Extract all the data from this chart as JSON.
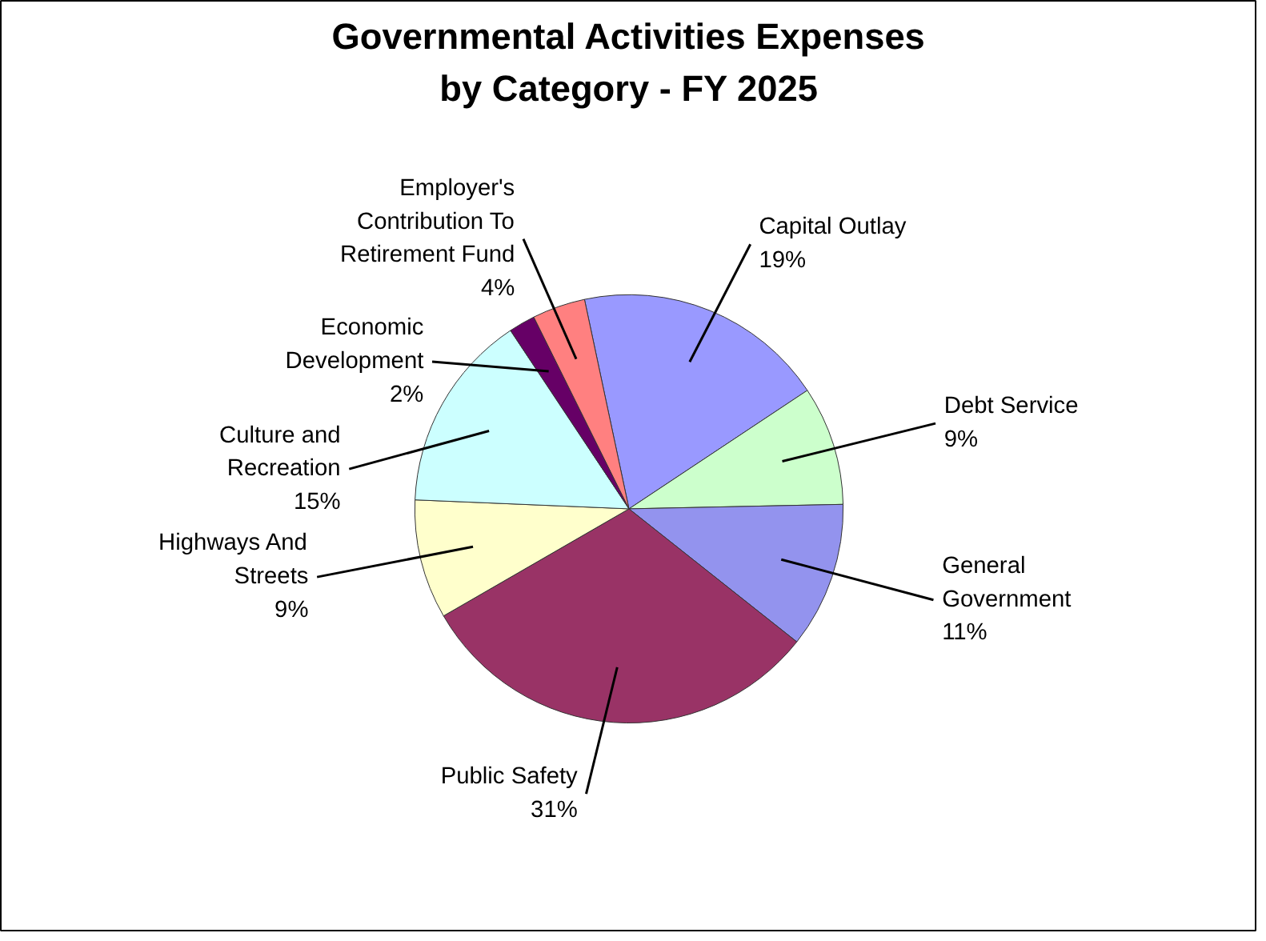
{
  "chart_data": {
    "type": "pie",
    "title": "Governmental Activities Expenses by Category - FY 2025",
    "categories": [
      "Capital Outlay",
      "Debt Service",
      "General Government",
      "Public Safety",
      "Highways And Streets",
      "Culture and Recreation",
      "Economic Development",
      "Employer's Contribution To Retirement Fund"
    ],
    "values": [
      19,
      9,
      11,
      31,
      9,
      15,
      2,
      4
    ],
    "value_labels": [
      "19%",
      "9%",
      "11%",
      "31%",
      "9%",
      "15%",
      "2%",
      "4%"
    ],
    "colors": [
      "#9999ff",
      "#ccffcc",
      "#9393ee",
      "#993366",
      "#ffffcc",
      "#ccffff",
      "#660066",
      "#ff8080"
    ]
  }
}
